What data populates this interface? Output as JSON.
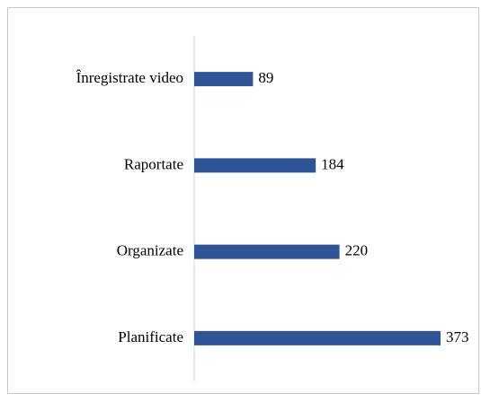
{
  "chart_data": {
    "type": "bar",
    "orientation": "horizontal",
    "categories": [
      "Înregistrate video",
      "Raportate",
      "Organizate",
      "Planificate"
    ],
    "values": [
      89,
      184,
      220,
      373
    ],
    "color": "#2f5597"
  }
}
